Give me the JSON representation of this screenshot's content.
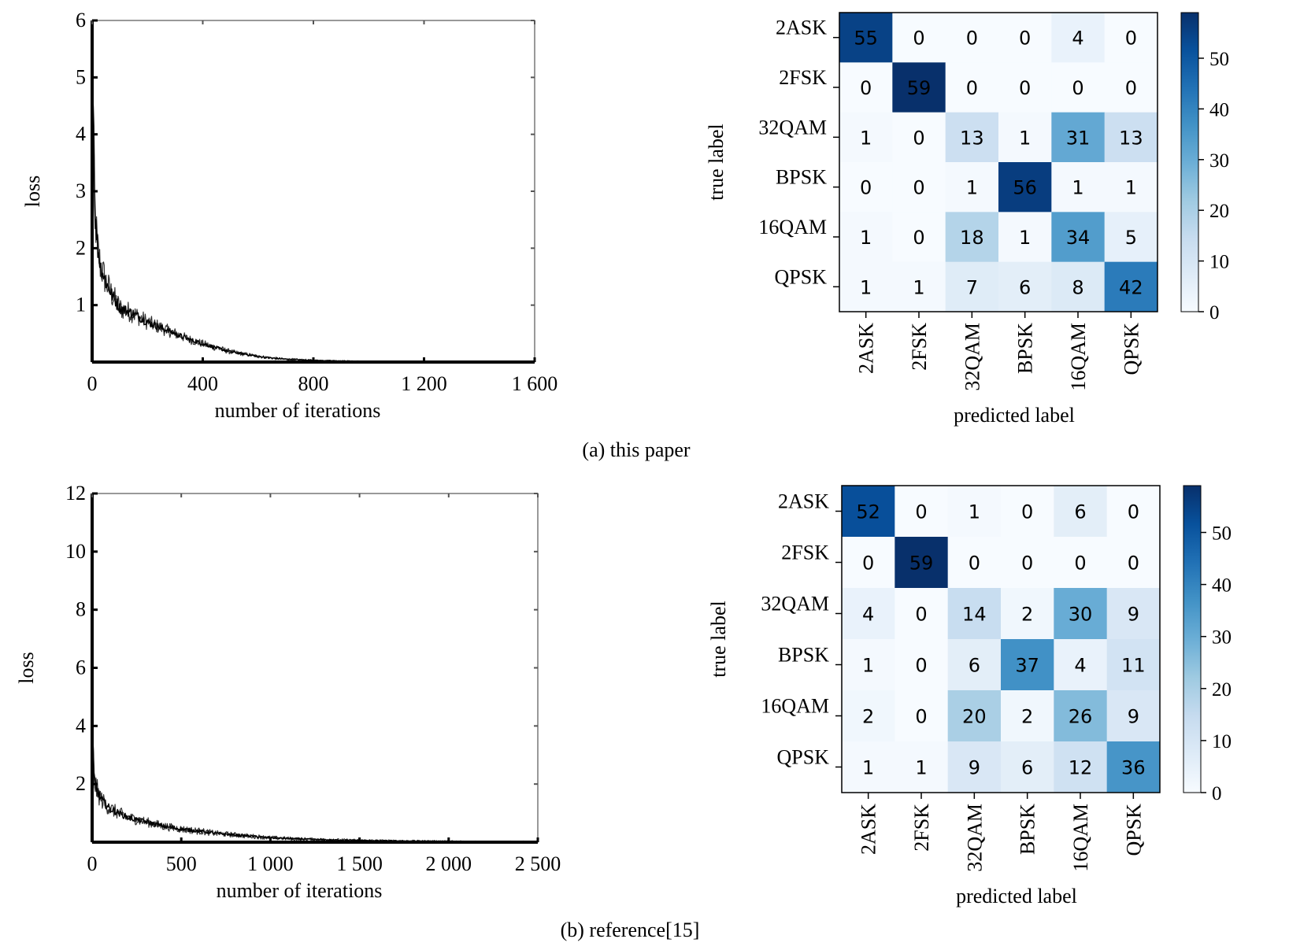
{
  "captions": {
    "a": "(a) this paper",
    "b": "(b) reference[15]"
  },
  "chart_data": [
    {
      "type": "line",
      "panel": "a",
      "title": "",
      "xlabel": "number of iterations",
      "ylabel": "loss",
      "xlim": [
        0,
        1600
      ],
      "ylim": [
        0,
        6
      ],
      "xticks": [
        0,
        400,
        800,
        1200,
        1600
      ],
      "xtick_labels": [
        "0",
        "400",
        "800",
        "1 200",
        "1 600"
      ],
      "yticks": [
        1,
        2,
        3,
        4,
        5,
        6
      ],
      "ytick_labels": [
        "1",
        "2",
        "3",
        "4",
        "5",
        "6"
      ],
      "grid": false,
      "series": [
        {
          "x": [
            0,
            5,
            10,
            20,
            30,
            50,
            75,
            100,
            150,
            200,
            250,
            300,
            350,
            400,
            450,
            500,
            550,
            600,
            650,
            700,
            800,
            900,
            1000,
            1200,
            1400,
            1600
          ],
          "y": [
            5.6,
            4.2,
            2.6,
            2.0,
            1.7,
            1.4,
            1.15,
            0.95,
            0.85,
            0.7,
            0.6,
            0.5,
            0.4,
            0.32,
            0.25,
            0.18,
            0.14,
            0.1,
            0.07,
            0.05,
            0.03,
            0.02,
            0.01,
            0.01,
            0.005,
            0.005
          ],
          "noise": [
            0.8,
            0.6,
            0.45,
            0.38,
            0.33,
            0.28,
            0.24,
            0.2,
            0.17,
            0.14,
            0.12,
            0.1,
            0.08,
            0.07,
            0.06,
            0.045,
            0.035,
            0.03,
            0.025,
            0.02,
            0.015,
            0.01,
            0.008,
            0.006,
            0.005,
            0.005
          ]
        }
      ]
    },
    {
      "type": "heatmap",
      "panel": "a",
      "xlabel": "predicted label",
      "ylabel": "true label",
      "rows": [
        "2ASK",
        "2FSK",
        "32QAM",
        "BPSK",
        "16QAM",
        "QPSK"
      ],
      "cols": [
        "2ASK",
        "2FSK",
        "32QAM",
        "BPSK",
        "16QAM",
        "QPSK"
      ],
      "values": [
        [
          55,
          0,
          0,
          0,
          4,
          0
        ],
        [
          0,
          59,
          0,
          0,
          0,
          0
        ],
        [
          1,
          0,
          13,
          1,
          31,
          13
        ],
        [
          0,
          0,
          1,
          56,
          1,
          1
        ],
        [
          1,
          0,
          18,
          1,
          34,
          5
        ],
        [
          1,
          1,
          7,
          6,
          8,
          42
        ]
      ],
      "vmin": 0,
      "vmax": 59,
      "colormap": "Blues",
      "colorbar_ticks": [
        0,
        10,
        20,
        30,
        40,
        50
      ]
    },
    {
      "type": "line",
      "panel": "b",
      "title": "",
      "xlabel": "number of iterations",
      "ylabel": "loss",
      "xlim": [
        0,
        2500
      ],
      "ylim": [
        0,
        12
      ],
      "xticks": [
        0,
        500,
        1000,
        1500,
        2000,
        2500
      ],
      "xtick_labels": [
        "0",
        "500",
        "1 000",
        "1 500",
        "2 000",
        "2 500"
      ],
      "yticks": [
        2,
        4,
        6,
        8,
        10,
        12
      ],
      "ytick_labels": [
        "2",
        "4",
        "6",
        "8",
        "10",
        "12"
      ],
      "grid": false,
      "series": [
        {
          "x": [
            0,
            5,
            10,
            20,
            40,
            60,
            100,
            150,
            200,
            300,
            400,
            500,
            600,
            700,
            800,
            900,
            1000,
            1200,
            1400,
            1600,
            1800,
            2000,
            2200,
            2500
          ],
          "y": [
            4.3,
            3.2,
            2.3,
            1.9,
            1.6,
            1.4,
            1.15,
            1.0,
            0.85,
            0.7,
            0.55,
            0.45,
            0.38,
            0.3,
            0.25,
            0.2,
            0.15,
            0.1,
            0.07,
            0.05,
            0.04,
            0.03,
            0.02,
            0.02
          ],
          "noise": [
            0.8,
            0.6,
            0.5,
            0.42,
            0.35,
            0.3,
            0.26,
            0.23,
            0.2,
            0.17,
            0.15,
            0.13,
            0.12,
            0.1,
            0.09,
            0.08,
            0.07,
            0.06,
            0.05,
            0.04,
            0.03,
            0.03,
            0.02,
            0.02
          ]
        }
      ]
    },
    {
      "type": "heatmap",
      "panel": "b",
      "xlabel": "predicted label",
      "ylabel": "true label",
      "rows": [
        "2ASK",
        "2FSK",
        "32QAM",
        "BPSK",
        "16QAM",
        "QPSK"
      ],
      "cols": [
        "2ASK",
        "2FSK",
        "32QAM",
        "BPSK",
        "16QAM",
        "QPSK"
      ],
      "values": [
        [
          52,
          0,
          1,
          0,
          6,
          0
        ],
        [
          0,
          59,
          0,
          0,
          0,
          0
        ],
        [
          4,
          0,
          14,
          2,
          30,
          9
        ],
        [
          1,
          0,
          6,
          37,
          4,
          11
        ],
        [
          2,
          0,
          20,
          2,
          26,
          9
        ],
        [
          1,
          1,
          9,
          6,
          12,
          36
        ]
      ],
      "vmin": 0,
      "vmax": 59,
      "colormap": "Blues",
      "colorbar_ticks": [
        0,
        10,
        20,
        30,
        40,
        50
      ]
    }
  ]
}
